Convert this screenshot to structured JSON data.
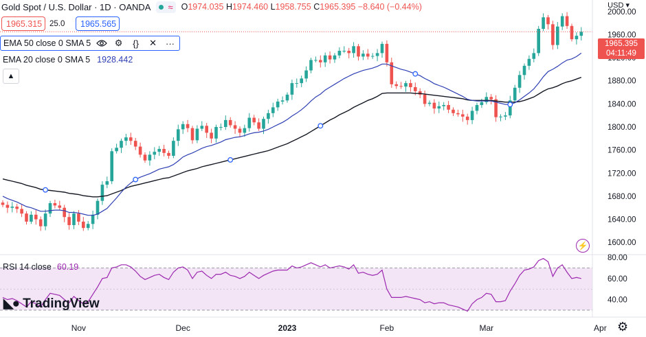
{
  "header": {
    "title": "Gold Spot / U.S. Dollar · 1D · OANDA",
    "ohlc": [
      {
        "k": "O",
        "v": "1974.035"
      },
      {
        "k": "H",
        "v": "1974.460"
      },
      {
        "k": "L",
        "v": "1958.755"
      },
      {
        "k": "C",
        "v": "1965.395"
      }
    ],
    "change": "−8.640 (−0.44%)"
  },
  "quote": {
    "bid": "1965.315",
    "spread": "25.0",
    "ask": "1965.565"
  },
  "indicators": [
    {
      "label": "EMA 50 close 0 SMA 5"
    },
    {
      "label": "EMA 20 close 0 SMA 5",
      "value": "1928.442"
    }
  ],
  "rsi": {
    "label": "RSI 14 close",
    "value": "60.19"
  },
  "logo_text": "TradingView",
  "currency": "USD",
  "price_tag": {
    "price": "1965.395",
    "countdown": "04:11:49"
  },
  "colors": {
    "up": "#26a69a",
    "down": "#ef5350",
    "ema20": "#2e3fb3",
    "ema50": "#131722",
    "rsi": "#9c27b0",
    "rsi_band": "#f3e5f5"
  },
  "chart_data": {
    "type": "candlestick",
    "ylim": [
      1580,
      2020
    ],
    "yticks": [
      1600,
      1640,
      1680,
      1720,
      1760,
      1800,
      1840,
      1880,
      1920,
      1960,
      2000
    ],
    "ytick_labels": [
      "1600.00",
      "1640.00",
      "1680.00",
      "1720.00",
      "1760.00",
      "1800.00",
      "1840.00",
      "1880.00",
      "1920.00",
      "1960.00",
      "2000.00"
    ],
    "xticks": [
      "Nov",
      "Dec",
      "2023",
      "Feb",
      "Mar",
      "Apr"
    ],
    "xtick_index": [
      16,
      38,
      60,
      81,
      102,
      126
    ],
    "close_series": [
      1665,
      1660,
      1662,
      1658,
      1650,
      1636,
      1648,
      1640,
      1628,
      1650,
      1668,
      1664,
      1660,
      1644,
      1630,
      1650,
      1636,
      1625,
      1632,
      1648,
      1672,
      1700,
      1706,
      1758,
      1764,
      1776,
      1782,
      1776,
      1766,
      1752,
      1742,
      1752,
      1757,
      1762,
      1755,
      1750,
      1776,
      1796,
      1805,
      1798,
      1777,
      1797,
      1802,
      1790,
      1780,
      1800,
      1800,
      1812,
      1803,
      1797,
      1790,
      1798,
      1816,
      1808,
      1797,
      1814,
      1824,
      1834,
      1844,
      1846,
      1856,
      1876,
      1876,
      1884,
      1898,
      1916,
      1916,
      1912,
      1924,
      1917,
      1924,
      1932,
      1932,
      1928,
      1940,
      1922,
      1927,
      1922,
      1923,
      1928,
      1944,
      1912,
      1874,
      1871,
      1870,
      1876,
      1869,
      1862,
      1856,
      1840,
      1842,
      1832,
      1836,
      1838,
      1830,
      1824,
      1822,
      1818,
      1812,
      1828,
      1838,
      1843,
      1852,
      1848,
      1817,
      1818,
      1820,
      1846,
      1868,
      1890,
      1906,
      1918,
      1928,
      1970,
      1990,
      1978,
      1942,
      1974,
      1992,
      1975,
      1952,
      1958,
      1965
    ],
    "ema20": [
      1680,
      1676,
      1673,
      1670,
      1666,
      1662,
      1660,
      1657,
      1654,
      1654,
      1655,
      1656,
      1656,
      1655,
      1652,
      1652,
      1651,
      1649,
      1647,
      1647,
      1649,
      1654,
      1659,
      1668,
      1677,
      1687,
      1696,
      1703,
      1709,
      1713,
      1716,
      1719,
      1723,
      1727,
      1729,
      1731,
      1735,
      1741,
      1748,
      1752,
      1755,
      1759,
      1763,
      1766,
      1768,
      1771,
      1774,
      1778,
      1780,
      1782,
      1783,
      1785,
      1788,
      1790,
      1791,
      1793,
      1796,
      1800,
      1804,
      1808,
      1813,
      1819,
      1824,
      1830,
      1837,
      1845,
      1852,
      1857,
      1864,
      1869,
      1874,
      1879,
      1884,
      1888,
      1892,
      1895,
      1898,
      1900,
      1902,
      1905,
      1909,
      1909,
      1906,
      1903,
      1900,
      1898,
      1895,
      1892,
      1889,
      1884,
      1880,
      1875,
      1872,
      1869,
      1865,
      1861,
      1857,
      1853,
      1848,
      1846,
      1845,
      1845,
      1845,
      1845,
      1843,
      1841,
      1839,
      1839,
      1842,
      1847,
      1853,
      1859,
      1866,
      1876,
      1887,
      1896,
      1900,
      1905,
      1911,
      1916,
      1918,
      1922,
      1928
    ],
    "ema50": [
      1710,
      1708,
      1706,
      1704,
      1702,
      1699,
      1697,
      1695,
      1692,
      1691,
      1690,
      1689,
      1688,
      1687,
      1685,
      1684,
      1683,
      1681,
      1680,
      1679,
      1679,
      1680,
      1681,
      1684,
      1687,
      1690,
      1694,
      1697,
      1699,
      1701,
      1703,
      1705,
      1707,
      1709,
      1711,
      1712,
      1715,
      1718,
      1721,
      1724,
      1726,
      1728,
      1731,
      1733,
      1735,
      1737,
      1739,
      1741,
      1743,
      1745,
      1747,
      1749,
      1751,
      1753,
      1755,
      1757,
      1759,
      1762,
      1765,
      1768,
      1771,
      1775,
      1779,
      1783,
      1787,
      1792,
      1797,
      1802,
      1807,
      1812,
      1816,
      1821,
      1825,
      1829,
      1834,
      1838,
      1842,
      1846,
      1849,
      1853,
      1858,
      1859,
      1859,
      1859,
      1859,
      1859,
      1859,
      1858,
      1858,
      1857,
      1856,
      1855,
      1854,
      1853,
      1852,
      1851,
      1850,
      1849,
      1847,
      1846,
      1846,
      1846,
      1846,
      1846,
      1845,
      1844,
      1843,
      1843,
      1843,
      1844,
      1846,
      1849,
      1852,
      1857,
      1862,
      1866,
      1868,
      1871,
      1875,
      1878,
      1880,
      1883,
      1886
    ],
    "rsi": {
      "ylim": [
        26,
        82
      ],
      "yticks": [
        40,
        60,
        80
      ],
      "ytick_labels": [
        "40.00",
        "60.00",
        "80.00"
      ],
      "bands": [
        30,
        70
      ],
      "values": [
        42,
        40,
        41,
        39,
        36,
        33,
        38,
        36,
        33,
        40,
        46,
        45,
        44,
        40,
        37,
        43,
        39,
        36,
        38,
        45,
        52,
        60,
        61,
        70,
        71,
        73,
        73,
        71,
        67,
        62,
        59,
        61,
        63,
        64,
        61,
        59,
        66,
        70,
        71,
        68,
        60,
        66,
        67,
        63,
        60,
        64,
        64,
        66,
        63,
        62,
        60,
        62,
        66,
        63,
        60,
        63,
        65,
        67,
        68,
        68,
        68,
        72,
        70,
        71,
        73,
        75,
        73,
        71,
        73,
        70,
        71,
        72,
        71,
        69,
        73,
        65,
        66,
        64,
        63,
        64,
        68,
        50,
        42,
        42,
        42,
        43,
        42,
        41,
        40,
        37,
        38,
        36,
        37,
        37,
        35,
        34,
        33,
        31,
        29,
        36,
        40,
        42,
        46,
        45,
        38,
        38,
        39,
        48,
        55,
        63,
        68,
        69,
        71,
        77,
        79,
        76,
        62,
        70,
        73,
        66,
        60,
        61,
        60
      ]
    }
  }
}
